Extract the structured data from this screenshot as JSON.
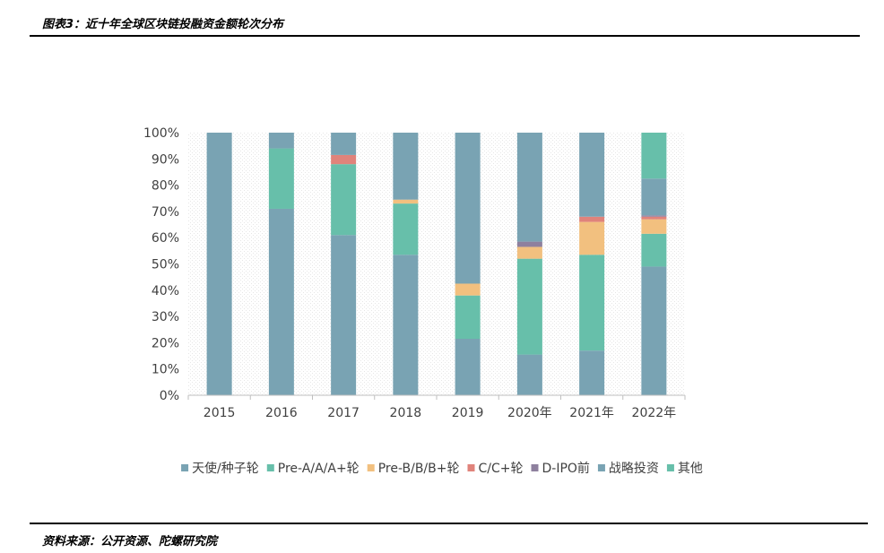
{
  "header": {
    "title": "图表3：近十年全球区块链投融资金额轮次分布"
  },
  "footer": {
    "source": "资料来源：公开资源、陀螺研究院"
  },
  "chart_data": {
    "type": "bar",
    "stacked": true,
    "percent": true,
    "categories": [
      "2015",
      "2016",
      "2017",
      "2018",
      "2019",
      "2020年",
      "2021年",
      "2022年"
    ],
    "ylim": [
      0,
      100
    ],
    "yticks": [
      "0%",
      "10%",
      "20%",
      "30%",
      "40%",
      "50%",
      "60%",
      "70%",
      "80%",
      "90%",
      "100%"
    ],
    "legend_position": "bottom",
    "series": [
      {
        "name": "天使/种子轮",
        "color": "#79A3B3",
        "values": [
          100,
          71,
          61,
          53.5,
          21.5,
          15.5,
          17,
          49
        ]
      },
      {
        "name": "Pre-A/A/A+轮",
        "color": "#67BFAA",
        "values": [
          0,
          23,
          27,
          19.5,
          16.5,
          36.5,
          36.5,
          12.5
        ]
      },
      {
        "name": "Pre-B/B/B+轮",
        "color": "#F2C07F",
        "values": [
          0,
          0,
          0,
          1.5,
          4.5,
          4.5,
          12.5,
          5.5
        ]
      },
      {
        "name": "C/C+轮",
        "color": "#E0837B",
        "values": [
          0,
          0,
          3.5,
          0,
          0,
          0,
          2,
          1
        ]
      },
      {
        "name": "D-IPO前",
        "color": "#8E809E",
        "values": [
          0,
          0,
          0,
          0,
          0,
          2,
          0,
          0.5
        ]
      },
      {
        "name": "战略投资",
        "color": "#79A3B3",
        "values": [
          0,
          6,
          8.5,
          25.5,
          57.5,
          41.5,
          32,
          14
        ]
      },
      {
        "name": "其他",
        "color": "#67BFAA",
        "values": [
          0,
          0,
          0,
          0,
          0,
          0,
          0,
          17.5
        ]
      }
    ]
  }
}
